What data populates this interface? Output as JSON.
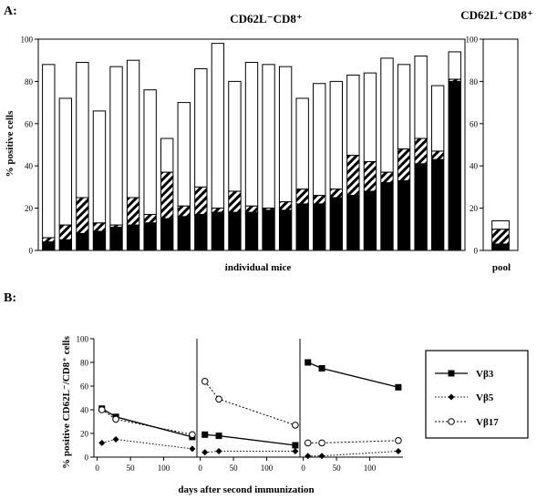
{
  "panel_a": {
    "label": "A:",
    "left_title": "CD62L⁻CD8⁺",
    "right_title": "CD62L⁺CD8⁺",
    "ylabel": "% positive cells",
    "xlabel": "individual mice",
    "right_xlabel": "pool",
    "yticks": [
      "0",
      "20",
      "40",
      "60",
      "80",
      "100"
    ]
  },
  "panel_b": {
    "label": "B:",
    "ylabel": "% positive CD62L⁻/CD8⁺ cells",
    "xlabel": "days after second immunization",
    "yticks": [
      "0",
      "20",
      "40",
      "60",
      "80",
      "100"
    ],
    "xticks": [
      "0",
      "50",
      "100"
    ],
    "legend": [
      "Vβ3",
      "Vβ5",
      "Vβ17"
    ]
  },
  "chart_data": [
    {
      "type": "bar",
      "stacked": true,
      "ylim": [
        0,
        100
      ],
      "ylabel": "% positive cells",
      "xlabel": "individual mice",
      "title": "CD62L⁻CD8⁺",
      "segment_order": [
        "black",
        "hatched",
        "white"
      ],
      "totals": [
        88,
        72,
        89,
        66,
        87,
        90,
        76,
        53,
        70,
        86,
        98,
        80,
        89,
        88,
        87,
        72,
        79,
        80,
        83,
        84,
        91,
        88,
        92,
        78,
        94
      ],
      "black": [
        4,
        5,
        8,
        9,
        11,
        12,
        13,
        15,
        16,
        17,
        18,
        18,
        18,
        19,
        19,
        22,
        22,
        25,
        26,
        28,
        32,
        33,
        41,
        43,
        80
      ],
      "hatched_top": [
        6,
        12,
        25,
        13,
        12,
        25,
        17,
        37,
        21,
        30,
        20,
        28,
        21,
        20,
        23,
        29,
        26,
        29,
        45,
        42,
        37,
        48,
        53,
        47,
        81
      ]
    },
    {
      "type": "bar",
      "stacked": true,
      "ylim": [
        0,
        100
      ],
      "title": "CD62L⁺CD8⁺",
      "xlabel": "pool",
      "segment_order": [
        "black",
        "hatched",
        "white"
      ],
      "totals": [
        14
      ],
      "black": [
        3
      ],
      "hatched_top": [
        10
      ]
    },
    {
      "type": "line",
      "ylim": [
        0,
        100
      ],
      "xlim": [
        -5,
        150
      ],
      "ylabel": "% positive CD62L⁻/CD8⁺ cells",
      "xlabel": "days after second immunization",
      "panels": [
        {
          "series": [
            {
              "name": "Vβ3",
              "x": [
                7,
                28,
                143
              ],
              "y": [
                41,
                34,
                17
              ]
            },
            {
              "name": "Vβ5",
              "x": [
                7,
                28,
                143
              ],
              "y": [
                12,
                15,
                7
              ]
            },
            {
              "name": "Vβ17",
              "x": [
                7,
                28,
                143
              ],
              "y": [
                40,
                32,
                19
              ]
            }
          ]
        },
        {
          "series": [
            {
              "name": "Vβ3",
              "x": [
                7,
                28,
                143
              ],
              "y": [
                19,
                18,
                10
              ]
            },
            {
              "name": "Vβ5",
              "x": [
                7,
                28,
                143
              ],
              "y": [
                4,
                5,
                5
              ]
            },
            {
              "name": "Vβ17",
              "x": [
                7,
                28,
                143
              ],
              "y": [
                64,
                49,
                27
              ]
            }
          ]
        },
        {
          "series": [
            {
              "name": "Vβ3",
              "x": [
                7,
                28,
                143
              ],
              "y": [
                80,
                75,
                59
              ]
            },
            {
              "name": "Vβ5",
              "x": [
                7,
                28,
                143
              ],
              "y": [
                1,
                1,
                5
              ]
            },
            {
              "name": "Vβ17",
              "x": [
                7,
                28,
                143
              ],
              "y": [
                12,
                12,
                14
              ]
            }
          ]
        }
      ]
    }
  ]
}
